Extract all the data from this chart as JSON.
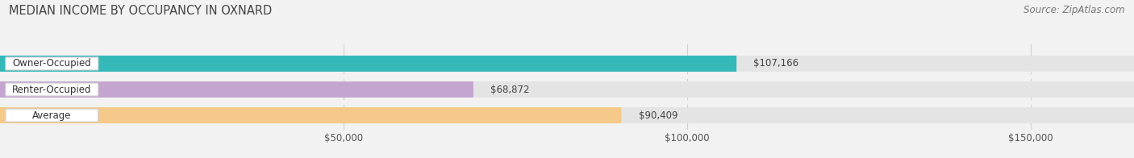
{
  "title": "MEDIAN INCOME BY OCCUPANCY IN OXNARD",
  "source": "Source: ZipAtlas.com",
  "categories": [
    "Owner-Occupied",
    "Renter-Occupied",
    "Average"
  ],
  "values": [
    107166,
    68872,
    90409
  ],
  "labels": [
    "$107,166",
    "$68,872",
    "$90,409"
  ],
  "bar_colors": [
    "#35b8b8",
    "#c4a5d0",
    "#f5c98a"
  ],
  "background_color": "#f2f2f2",
  "bar_bg_color": "#e4e4e4",
  "xlim": [
    0,
    165000
  ],
  "xticks": [
    50000,
    100000,
    150000
  ],
  "xticklabels": [
    "$50,000",
    "$100,000",
    "$150,000"
  ],
  "title_fontsize": 10.5,
  "source_fontsize": 8.5,
  "label_fontsize": 8.5,
  "tick_fontsize": 8.5,
  "cat_fontsize": 8.5
}
